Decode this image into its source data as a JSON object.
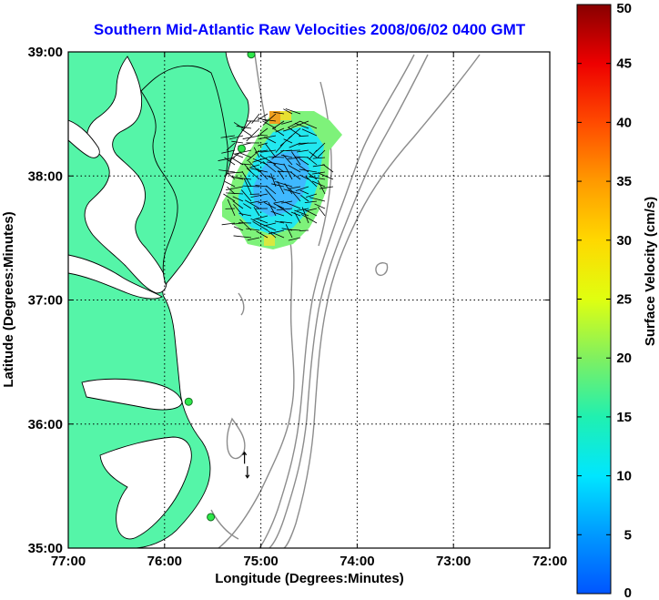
{
  "title": "Southern Mid-Atlantic Raw Velocities 2008/06/02 0400 GMT",
  "xlabel": "Longitude (Degrees:Minutes)",
  "ylabel": "Latitude (Degrees:Minutes)",
  "colorbar": {
    "label": "Surface Velocity (cm/s)",
    "min": 0,
    "max": 50,
    "ticks": [
      "0",
      "5",
      "10",
      "15",
      "20",
      "25",
      "30",
      "35",
      "40",
      "45",
      "50"
    ]
  },
  "colors": {
    "land": "#55f5a8",
    "land_edge": "#7cf9c0",
    "site": "#2ee84a",
    "title": "#0000ff",
    "contour": "#8c8c8c"
  },
  "chart_data": {
    "type": "vector-map",
    "xlim": [
      -77,
      -72
    ],
    "ylim": [
      35,
      39
    ],
    "x_ticks": [
      "77:00",
      "76:00",
      "75:00",
      "74:00",
      "73:00",
      "72:00"
    ],
    "y_ticks": [
      "35:00",
      "36:00",
      "37:00",
      "38:00",
      "39:00"
    ],
    "grid": true,
    "legend": "colorbar-right",
    "radar_sites": [
      {
        "lon": -75.1,
        "lat": 38.98
      },
      {
        "lon": -75.2,
        "lat": 38.22
      },
      {
        "lon": -75.75,
        "lat": 36.18
      },
      {
        "lon": -75.52,
        "lat": 35.25
      }
    ],
    "isolated_vectors": [
      {
        "lon": -75.17,
        "lat": 35.68,
        "u": 0,
        "v": 9
      },
      {
        "lon": -75.14,
        "lat": 35.66,
        "u": 0,
        "v": -9
      }
    ]
  }
}
